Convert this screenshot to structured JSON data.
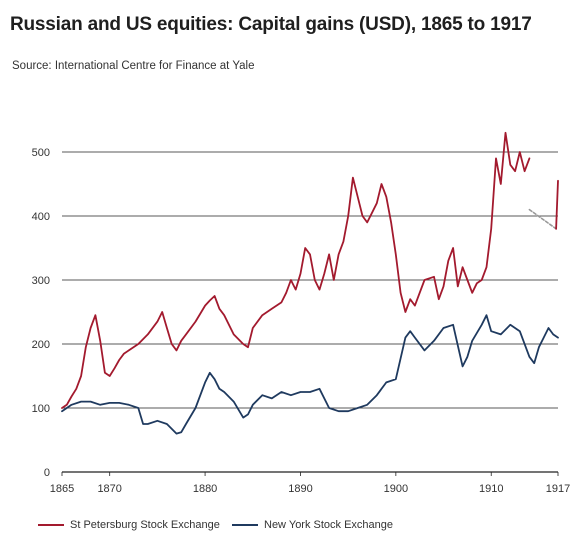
{
  "header": {
    "title": "Russian and US equities: Capital gains (USD), 1865 to 1917",
    "source": "Source: International Centre for Finance at Yale"
  },
  "chart_data": {
    "type": "line",
    "title": "Russian and US equities: Capital gains (USD), 1865 to 1917",
    "xlabel": "",
    "ylabel": "",
    "xlim": [
      1865,
      1917
    ],
    "ylim": [
      0,
      550
    ],
    "yticks": [
      0,
      100,
      200,
      300,
      400,
      500
    ],
    "xticks": [
      1865,
      1870,
      1880,
      1890,
      1900,
      1910,
      1917
    ],
    "grid": true,
    "legend_position": "bottom",
    "series": [
      {
        "name": "St Petersburg Stock Exchange",
        "color": "#a31a2e",
        "x": [
          1865.0,
          1865.5,
          1866.0,
          1866.5,
          1867.0,
          1867.5,
          1868.0,
          1868.5,
          1869.0,
          1869.5,
          1870.0,
          1870.5,
          1871.0,
          1871.5,
          1872.0,
          1873.0,
          1874.0,
          1875.0,
          1875.5,
          1876.0,
          1876.5,
          1877.0,
          1877.5,
          1878.0,
          1879.0,
          1880.0,
          1880.5,
          1881.0,
          1881.5,
          1882.0,
          1883.0,
          1884.0,
          1884.5,
          1885.0,
          1886.0,
          1887.0,
          1888.0,
          1888.5,
          1889.0,
          1889.5,
          1890.0,
          1890.5,
          1891.0,
          1891.5,
          1892.0,
          1892.5,
          1893.0,
          1893.5,
          1894.0,
          1894.5,
          1895.0,
          1895.5,
          1896.0,
          1896.5,
          1897.0,
          1897.5,
          1898.0,
          1898.5,
          1899.0,
          1899.5,
          1900.0,
          1900.5,
          1901.0,
          1901.5,
          1902.0,
          1903.0,
          1904.0,
          1904.5,
          1905.0,
          1905.5,
          1906.0,
          1906.5,
          1907.0,
          1907.5,
          1908.0,
          1908.5,
          1909.0,
          1909.5,
          1910.0,
          1910.5,
          1911.0,
          1911.5,
          1912.0,
          1912.5,
          1913.0,
          1913.5,
          1914.0
        ],
        "values": [
          100,
          105,
          118,
          130,
          150,
          195,
          225,
          245,
          205,
          155,
          150,
          162,
          175,
          185,
          190,
          200,
          215,
          235,
          250,
          225,
          200,
          190,
          205,
          215,
          235,
          260,
          268,
          275,
          255,
          245,
          215,
          200,
          195,
          225,
          245,
          255,
          265,
          280,
          300,
          285,
          310,
          350,
          340,
          300,
          285,
          310,
          340,
          300,
          340,
          360,
          400,
          460,
          430,
          400,
          390,
          405,
          420,
          450,
          430,
          390,
          340,
          280,
          250,
          270,
          260,
          300,
          305,
          270,
          290,
          330,
          350,
          290,
          320,
          300,
          280,
          295,
          300,
          320,
          380,
          490,
          450,
          530,
          480,
          470,
          500,
          470,
          490
        ]
      },
      {
        "name": "New York Stock Exchange",
        "color": "#1f3a5f",
        "x": [
          1865.0,
          1865.5,
          1866.0,
          1867.0,
          1868.0,
          1869.0,
          1870.0,
          1871.0,
          1872.0,
          1873.0,
          1873.5,
          1874.0,
          1875.0,
          1876.0,
          1877.0,
          1877.5,
          1878.0,
          1879.0,
          1880.0,
          1880.5,
          1881.0,
          1881.5,
          1882.0,
          1883.0,
          1884.0,
          1884.5,
          1885.0,
          1886.0,
          1887.0,
          1888.0,
          1889.0,
          1890.0,
          1891.0,
          1892.0,
          1893.0,
          1894.0,
          1895.0,
          1896.0,
          1897.0,
          1898.0,
          1899.0,
          1900.0,
          1901.0,
          1901.5,
          1902.0,
          1903.0,
          1904.0,
          1905.0,
          1906.0,
          1907.0,
          1907.5,
          1908.0,
          1909.0,
          1909.5,
          1910.0,
          1911.0,
          1912.0,
          1913.0,
          1914.0,
          1914.5,
          1915.0,
          1915.5,
          1916.0,
          1916.5,
          1917.0
        ],
        "values": [
          95,
          100,
          105,
          110,
          110,
          105,
          108,
          108,
          105,
          100,
          75,
          75,
          80,
          75,
          60,
          62,
          75,
          100,
          140,
          155,
          145,
          130,
          125,
          110,
          85,
          90,
          105,
          120,
          115,
          125,
          120,
          125,
          125,
          130,
          100,
          95,
          95,
          100,
          105,
          120,
          140,
          145,
          210,
          220,
          210,
          190,
          205,
          225,
          230,
          165,
          180,
          205,
          230,
          245,
          220,
          215,
          230,
          220,
          180,
          170,
          195,
          210,
          225,
          215,
          210
        ]
      },
      {
        "name": "",
        "color": "#999999",
        "dashed": true,
        "x": [
          1914.0,
          1916.8
        ],
        "values": [
          410,
          380
        ]
      },
      {
        "name": "",
        "color": "#a31a2e",
        "x": [
          1916.8,
          1917.0
        ],
        "values": [
          380,
          455
        ]
      }
    ]
  }
}
